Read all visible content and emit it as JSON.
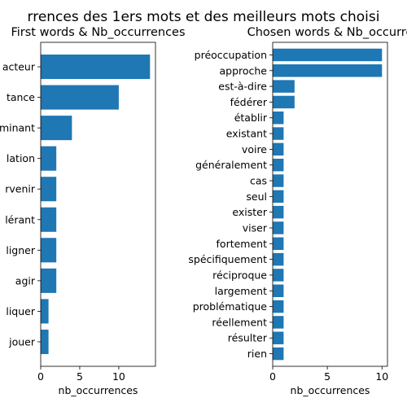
{
  "suptitle": "rrences des 1ers mots et des meilleurs mots choisi",
  "colors": {
    "bar": "#1f77b4",
    "suptitle": "#b22222"
  },
  "chart_data": [
    {
      "type": "bar",
      "orientation": "horizontal",
      "title": "First words & Nb_occurrences",
      "xlabel": "nb_occurrences",
      "ylabel": "",
      "xlim": [
        0,
        14.7
      ],
      "xticks": [
        0,
        5,
        10
      ],
      "categories": [
        "acteur",
        "tance",
        "minant",
        "lation",
        "rvenir",
        "lérant",
        "ligner",
        "agir",
        "liquer",
        "jouer"
      ],
      "values": [
        14,
        10,
        4,
        2,
        2,
        2,
        2,
        2,
        1,
        1
      ]
    },
    {
      "type": "bar",
      "orientation": "horizontal",
      "title": "Chosen words & Nb_occurre",
      "xlabel": "nb_occurrences",
      "ylabel": "",
      "xlim": [
        0,
        10.5
      ],
      "xticks": [
        0,
        5,
        10
      ],
      "categories": [
        "préoccupation",
        "approche",
        "est-à-dire",
        "fédérer",
        "établir",
        "existant",
        "voire",
        "généralement",
        "cas",
        "seul",
        "exister",
        "viser",
        "fortement",
        "spécifiquement",
        "réciproque",
        "largement",
        "problématique",
        "réellement",
        "résulter",
        "rien"
      ],
      "values": [
        10,
        10,
        2,
        2,
        1,
        1,
        1,
        1,
        1,
        1,
        1,
        1,
        1,
        1,
        1,
        1,
        1,
        1,
        1,
        1
      ]
    }
  ]
}
